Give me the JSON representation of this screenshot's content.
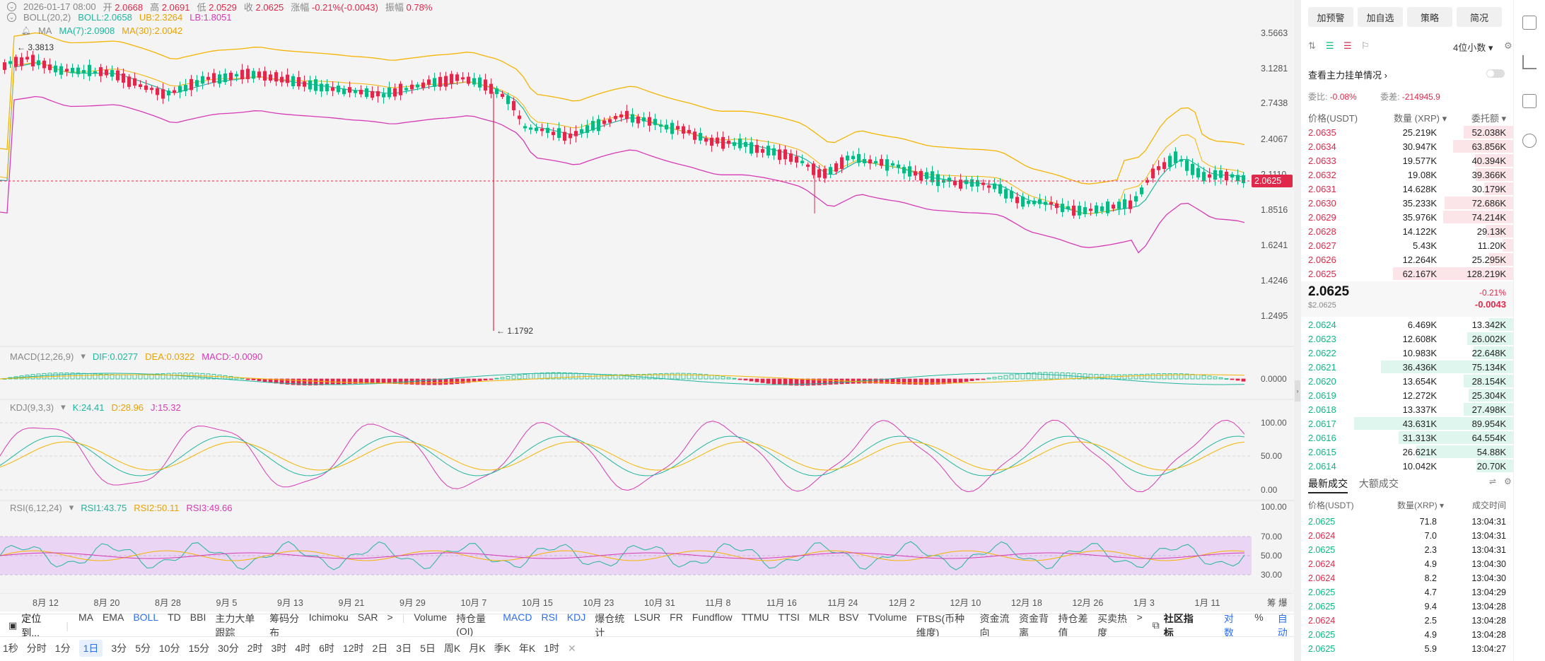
{
  "header": {
    "date": "2026-01-17 08:00",
    "open_label": "开",
    "open": "2.0668",
    "high_label": "高",
    "high": "2.0691",
    "low_label": "低",
    "low": "2.0529",
    "close_label": "收",
    "close": "2.0625",
    "change_label": "涨幅",
    "change": "-0.21%(-0.0043)",
    "amp_label": "振幅",
    "amp": "0.78%"
  },
  "boll": {
    "name": "BOLL(20,2)",
    "mid": "BOLL:2.0658",
    "ub": "UB:2.3264",
    "lb": "LB:1.8051"
  },
  "ma": {
    "name": "MA",
    "ma7": "MA(7):2.0908",
    "ma30": "MA(30):2.0042"
  },
  "main_chart": {
    "price_axis": [
      "3.5663",
      "3.1281",
      "2.7438",
      "2.4067",
      "2.1110",
      "1.8516",
      "1.6241",
      "1.4246",
      "1.2495"
    ],
    "high_marker": "3.3813",
    "low_marker": "1.1792",
    "current_price": "2.0625",
    "colors": {
      "up": "#0bb884",
      "down": "#e0294a",
      "ub": "#f5b400",
      "lb": "#d63bb5",
      "mid": "#1fb6a0"
    }
  },
  "macd": {
    "name": "MACD(12,26,9)",
    "dif": "DIF:0.0277",
    "dea": "DEA:0.0322",
    "macd": "MACD:-0.0090",
    "axis": [
      "0.0000"
    ]
  },
  "kdj": {
    "name": "KDJ(9,3,3)",
    "k": "K:24.41",
    "d": "D:28.96",
    "j": "J:15.32",
    "axis": [
      "100.00",
      "50.00",
      "0.00"
    ]
  },
  "rsi": {
    "name": "RSI(6,12,24)",
    "r1": "RSI1:43.75",
    "r2": "RSI2:50.11",
    "r3": "RSI3:49.66",
    "axis": [
      "100.00",
      "70.00",
      "50.00",
      "30.00"
    ]
  },
  "x_axis": [
    "8月 12",
    "8月 20",
    "8月 28",
    "9月 5",
    "9月 13",
    "9月 21",
    "9月 29",
    "10月 7",
    "10月 15",
    "10月 23",
    "10月 31",
    "11月 8",
    "11月 16",
    "11月 24",
    "12月 2",
    "12月 10",
    "12月 18",
    "12月 26",
    "1月 3",
    "1月 11"
  ],
  "x_axis_right": "筹 爆",
  "indicator_bar": {
    "locate": "定位到...",
    "items": [
      "MA",
      "EMA",
      "BOLL",
      "TD",
      "BBI",
      "主力大单跟踪",
      "筹码分布",
      "Ichimoku",
      "SAR",
      ">",
      "Volume",
      "持仓量 (OI)",
      "MACD",
      "RSI",
      "KDJ",
      "爆仓统计",
      "LSUR",
      "FR",
      "Fundflow",
      "TTMU",
      "TTSI",
      "MLR",
      "BSV",
      "TVolume",
      "FTBS(币种维度)",
      "资金流向",
      "资金背离",
      "持仓差值",
      "买卖热度",
      ">"
    ],
    "community": "社区指标",
    "right": [
      "对数",
      "%",
      "自动"
    ]
  },
  "timeframes": [
    "1秒",
    "分时",
    "1分",
    "1日",
    "3分",
    "5分",
    "10分",
    "15分",
    "30分",
    "2时",
    "3时",
    "4时",
    "6时",
    "12时",
    "2日",
    "3日",
    "5日",
    "周K",
    "月K",
    "季K",
    "年K",
    "1时",
    "✕"
  ],
  "right_panel": {
    "buttons": [
      "加预警",
      "加自选",
      "策略",
      "简况"
    ],
    "decimals": "4位小数",
    "depth_link": "查看主力挂单情况",
    "ratio_label": "委比:",
    "ratio": "-0.08%",
    "diff_label": "委差:",
    "diff": "-214945.9",
    "col_price": "价格(USDT)",
    "col_amount": "数量 (XRP)",
    "col_total": "委托额",
    "asks": [
      {
        "p": "2.0635",
        "a": "25.219K",
        "s": "52.038K",
        "w": 0.41
      },
      {
        "p": "2.0634",
        "a": "30.947K",
        "s": "63.856K",
        "w": 0.5
      },
      {
        "p": "2.0633",
        "a": "19.577K",
        "s": "40.394K",
        "w": 0.32
      },
      {
        "p": "2.0632",
        "a": "19.08K",
        "s": "39.366K",
        "w": 0.31
      },
      {
        "p": "2.0631",
        "a": "14.628K",
        "s": "30.179K",
        "w": 0.24
      },
      {
        "p": "2.0630",
        "a": "35.233K",
        "s": "72.686K",
        "w": 0.57
      },
      {
        "p": "2.0629",
        "a": "35.976K",
        "s": "74.214K",
        "w": 0.58
      },
      {
        "p": "2.0628",
        "a": "14.122K",
        "s": "29.13K",
        "w": 0.23
      },
      {
        "p": "2.0627",
        "a": "5.43K",
        "s": "11.20K",
        "w": 0.09
      },
      {
        "p": "2.0626",
        "a": "12.264K",
        "s": "25.295K",
        "w": 0.2
      },
      {
        "p": "2.0625",
        "a": "62.167K",
        "s": "128.219K",
        "w": 1.0
      }
    ],
    "last_price": "2.0625",
    "last_usd": "$2.0625",
    "last_pct": "-0.21%",
    "last_chg": "-0.0043",
    "bids": [
      {
        "p": "2.0624",
        "a": "6.469K",
        "s": "13.342K",
        "w": 0.15
      },
      {
        "p": "2.0623",
        "a": "12.608K",
        "s": "26.002K",
        "w": 0.29
      },
      {
        "p": "2.0622",
        "a": "10.983K",
        "s": "22.648K",
        "w": 0.25
      },
      {
        "p": "2.0621",
        "a": "36.436K",
        "s": "75.134K",
        "w": 0.83
      },
      {
        "p": "2.0620",
        "a": "13.654K",
        "s": "28.154K",
        "w": 0.31
      },
      {
        "p": "2.0619",
        "a": "12.272K",
        "s": "25.304K",
        "w": 0.28
      },
      {
        "p": "2.0618",
        "a": "13.337K",
        "s": "27.498K",
        "w": 0.31
      },
      {
        "p": "2.0617",
        "a": "43.631K",
        "s": "89.954K",
        "w": 1.0
      },
      {
        "p": "2.0616",
        "a": "31.313K",
        "s": "64.554K",
        "w": 0.72
      },
      {
        "p": "2.0615",
        "a": "26.621K",
        "s": "54.88K",
        "w": 0.61
      },
      {
        "p": "2.0614",
        "a": "10.042K",
        "s": "20.70K",
        "w": 0.23
      }
    ],
    "trades_tab": "最新成交",
    "big_tab": "大额成交",
    "trade_cols": {
      "price": "价格(USDT)",
      "amount": "数量(XRP)",
      "time": "成交时间"
    },
    "trades": [
      {
        "p": "2.0625",
        "a": "71.8",
        "t": "13:04:31",
        "up": true
      },
      {
        "p": "2.0624",
        "a": "7.0",
        "t": "13:04:31",
        "up": false
      },
      {
        "p": "2.0625",
        "a": "2.3",
        "t": "13:04:31",
        "up": true
      },
      {
        "p": "2.0624",
        "a": "4.9",
        "t": "13:04:30",
        "up": false
      },
      {
        "p": "2.0624",
        "a": "8.2",
        "t": "13:04:30",
        "up": false
      },
      {
        "p": "2.0625",
        "a": "4.7",
        "t": "13:04:29",
        "up": true
      },
      {
        "p": "2.0625",
        "a": "9.4",
        "t": "13:04:28",
        "up": true
      },
      {
        "p": "2.0624",
        "a": "2.5",
        "t": "13:04:28",
        "up": false
      },
      {
        "p": "2.0625",
        "a": "4.9",
        "t": "13:04:28",
        "up": true
      },
      {
        "p": "2.0625",
        "a": "5.9",
        "t": "13:04:27",
        "up": true
      }
    ]
  }
}
